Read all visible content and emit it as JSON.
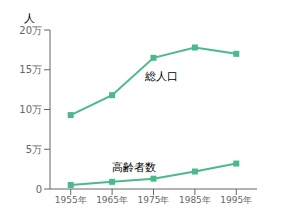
{
  "chart_data": {
    "type": "line",
    "ylabel": "人",
    "x": [
      1955,
      1965,
      1975,
      1985,
      1995
    ],
    "series": [
      {
        "color": "#4bba8a",
        "marker": "square",
        "values": [
          9.3,
          11.8,
          16.5,
          17.8,
          17.0
        ]
      },
      {
        "color": "#4bba8a",
        "marker": "square",
        "values": [
          0.5,
          0.9,
          1.3,
          2.2,
          3.2
        ]
      }
    ],
    "xlim": [
      1950,
      2000
    ],
    "xticks": [
      {
        "value": 1955,
        "label": "1955年"
      },
      {
        "value": 1965,
        "label": "1965年"
      },
      {
        "value": 1975,
        "label": "1975年"
      },
      {
        "value": 1985,
        "label": "1985年"
      },
      {
        "value": 1995,
        "label": "1995年"
      }
    ],
    "ylim": [
      0,
      20
    ],
    "yticks": [
      0,
      {
        "value": 5,
        "label": "5万"
      },
      {
        "value": 10,
        "label": "10万"
      },
      {
        "value": 15,
        "label": "15万"
      },
      {
        "value": 20,
        "label": "20万"
      }
    ],
    "annotations": [
      {
        "text": "総人口",
        "x": 1973,
        "y": 13.5
      },
      {
        "text": "高齢者数",
        "x": 1965,
        "y": 2.0
      }
    ],
    "grid": false
  }
}
